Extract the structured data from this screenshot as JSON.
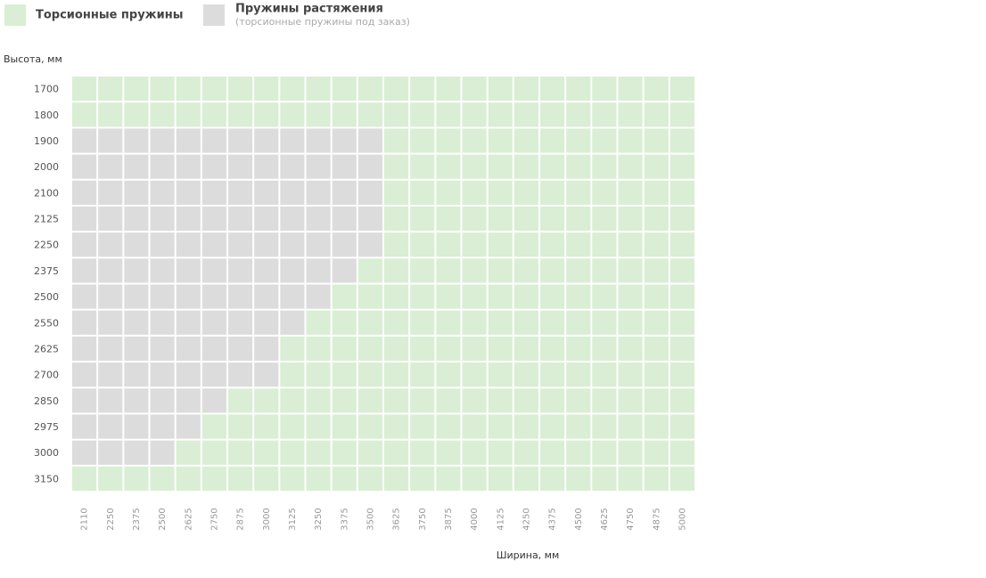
{
  "chart_data": {
    "type": "grid",
    "series": [
      {
        "name": "Торсионные пружины",
        "color": "#d9eed4"
      },
      {
        "name": "Пружины растяжения",
        "description": "(торсионные пружины под заказ)",
        "color": "#dcdcdc"
      }
    ],
    "y_label": "Высота, мм",
    "x_label": "Ширина, мм",
    "rows": [
      "1700",
      "1800",
      "1900",
      "2000",
      "2100",
      "2125",
      "2250",
      "2375",
      "2500",
      "2550",
      "2625",
      "2700",
      "2850",
      "2975",
      "3000",
      "3150"
    ],
    "categories": [
      "2110",
      "2250",
      "2375",
      "2500",
      "2625",
      "2750",
      "2875",
      "3000",
      "3125",
      "3250",
      "3375",
      "3500",
      "3625",
      "3750",
      "3875",
      "4000",
      "4125",
      "4250",
      "4375",
      "4500",
      "4625",
      "4750",
      "4875",
      "5000"
    ],
    "values": [
      [
        0,
        0,
        0,
        0,
        0,
        0,
        0,
        0,
        0,
        0,
        0,
        0,
        0,
        0,
        0,
        0,
        0,
        0,
        0,
        0,
        0,
        0,
        0,
        0
      ],
      [
        0,
        0,
        0,
        0,
        0,
        0,
        0,
        0,
        0,
        0,
        0,
        0,
        0,
        0,
        0,
        0,
        0,
        0,
        0,
        0,
        0,
        0,
        0,
        0
      ],
      [
        1,
        1,
        1,
        1,
        1,
        1,
        1,
        1,
        1,
        1,
        1,
        1,
        0,
        0,
        0,
        0,
        0,
        0,
        0,
        0,
        0,
        0,
        0,
        0
      ],
      [
        1,
        1,
        1,
        1,
        1,
        1,
        1,
        1,
        1,
        1,
        1,
        1,
        0,
        0,
        0,
        0,
        0,
        0,
        0,
        0,
        0,
        0,
        0,
        0
      ],
      [
        1,
        1,
        1,
        1,
        1,
        1,
        1,
        1,
        1,
        1,
        1,
        1,
        0,
        0,
        0,
        0,
        0,
        0,
        0,
        0,
        0,
        0,
        0,
        0
      ],
      [
        1,
        1,
        1,
        1,
        1,
        1,
        1,
        1,
        1,
        1,
        1,
        1,
        0,
        0,
        0,
        0,
        0,
        0,
        0,
        0,
        0,
        0,
        0,
        0
      ],
      [
        1,
        1,
        1,
        1,
        1,
        1,
        1,
        1,
        1,
        1,
        1,
        1,
        0,
        0,
        0,
        0,
        0,
        0,
        0,
        0,
        0,
        0,
        0,
        0
      ],
      [
        1,
        1,
        1,
        1,
        1,
        1,
        1,
        1,
        1,
        1,
        1,
        0,
        0,
        0,
        0,
        0,
        0,
        0,
        0,
        0,
        0,
        0,
        0,
        0
      ],
      [
        1,
        1,
        1,
        1,
        1,
        1,
        1,
        1,
        1,
        1,
        0,
        0,
        0,
        0,
        0,
        0,
        0,
        0,
        0,
        0,
        0,
        0,
        0,
        0
      ],
      [
        1,
        1,
        1,
        1,
        1,
        1,
        1,
        1,
        1,
        0,
        0,
        0,
        0,
        0,
        0,
        0,
        0,
        0,
        0,
        0,
        0,
        0,
        0,
        0
      ],
      [
        1,
        1,
        1,
        1,
        1,
        1,
        1,
        1,
        0,
        0,
        0,
        0,
        0,
        0,
        0,
        0,
        0,
        0,
        0,
        0,
        0,
        0,
        0,
        0
      ],
      [
        1,
        1,
        1,
        1,
        1,
        1,
        1,
        1,
        0,
        0,
        0,
        0,
        0,
        0,
        0,
        0,
        0,
        0,
        0,
        0,
        0,
        0,
        0,
        0
      ],
      [
        1,
        1,
        1,
        1,
        1,
        1,
        0,
        0,
        0,
        0,
        0,
        0,
        0,
        0,
        0,
        0,
        0,
        0,
        0,
        0,
        0,
        0,
        0,
        0
      ],
      [
        1,
        1,
        1,
        1,
        1,
        0,
        0,
        0,
        0,
        0,
        0,
        0,
        0,
        0,
        0,
        0,
        0,
        0,
        0,
        0,
        0,
        0,
        0,
        0
      ],
      [
        1,
        1,
        1,
        1,
        0,
        0,
        0,
        0,
        0,
        0,
        0,
        0,
        0,
        0,
        0,
        0,
        0,
        0,
        0,
        0,
        0,
        0,
        0,
        0
      ],
      [
        0,
        0,
        0,
        0,
        0,
        0,
        0,
        0,
        0,
        0,
        0,
        0,
        0,
        0,
        0,
        0,
        0,
        0,
        0,
        0,
        0,
        0,
        0,
        0
      ]
    ]
  }
}
